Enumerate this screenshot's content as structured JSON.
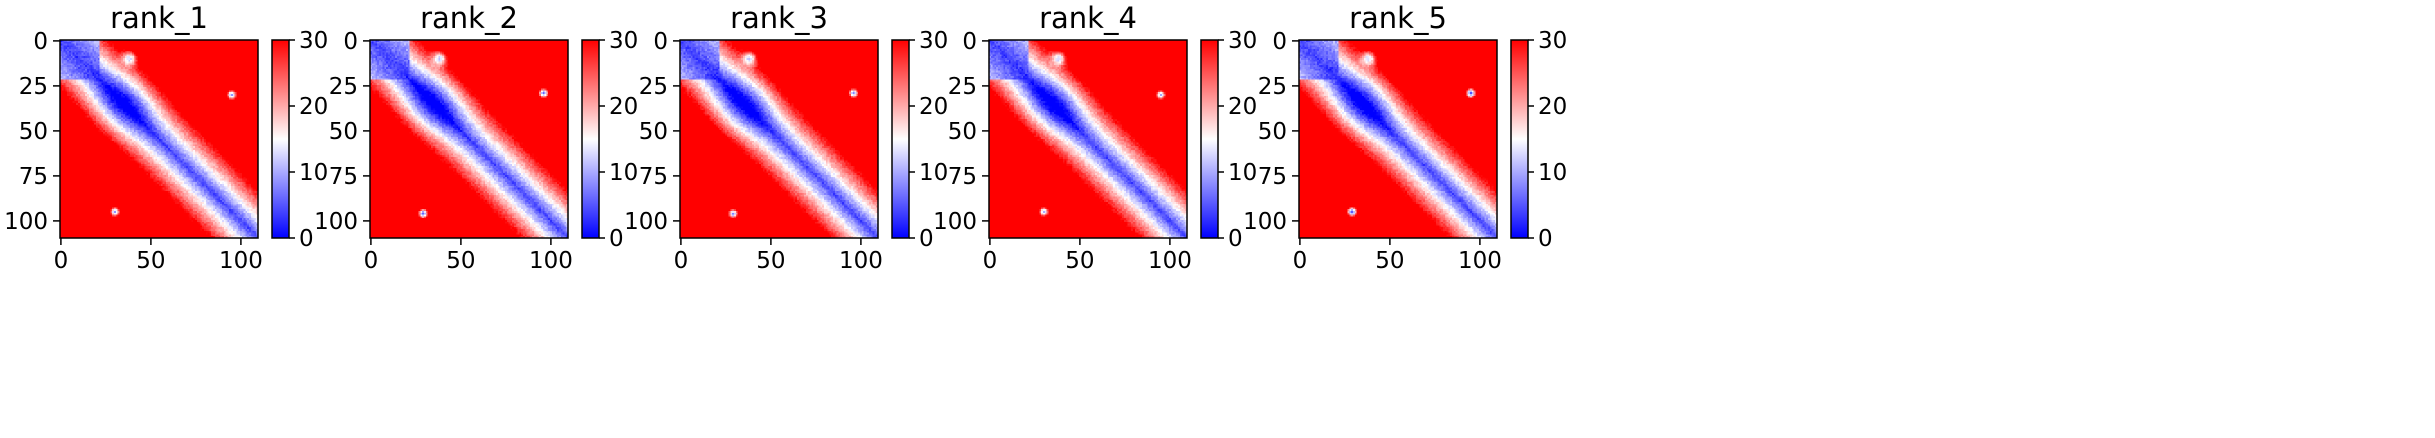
{
  "chart_data": [
    {
      "type": "heatmap",
      "title": "rank_1",
      "xlabel": "",
      "ylabel": "",
      "xlim": [
        0,
        110
      ],
      "ylim": [
        110,
        0
      ],
      "x_ticks": [
        "0",
        "50",
        "100"
      ],
      "y_ticks": [
        "0",
        "25",
        "50",
        "75",
        "100"
      ],
      "colorbar": {
        "range": [
          0,
          30
        ],
        "ticks": [
          "0",
          "10",
          "20",
          "30"
        ],
        "colormap": "bwr"
      },
      "size": 110,
      "blobs": [
        {
          "x": 95,
          "y": 30,
          "value": 10
        },
        {
          "x": 30,
          "y": 95,
          "value": 10
        },
        {
          "x": 38,
          "y": 10,
          "value": 12
        }
      ]
    },
    {
      "type": "heatmap",
      "title": "rank_2",
      "xlabel": "",
      "ylabel": "",
      "xlim": [
        0,
        110
      ],
      "ylim": [
        110,
        0
      ],
      "x_ticks": [
        "0",
        "50",
        "100"
      ],
      "y_ticks": [
        "0",
        "25",
        "50",
        "75",
        "100"
      ],
      "colorbar": {
        "range": [
          0,
          30
        ],
        "ticks": [
          "0",
          "10",
          "20",
          "30"
        ],
        "colormap": "bwr"
      },
      "size": 110,
      "blobs": [
        {
          "x": 96,
          "y": 29,
          "value": 7
        },
        {
          "x": 29,
          "y": 96,
          "value": 7
        },
        {
          "x": 38,
          "y": 10,
          "value": 12
        }
      ]
    },
    {
      "type": "heatmap",
      "title": "rank_3",
      "xlabel": "",
      "ylabel": "",
      "xlim": [
        0,
        110
      ],
      "ylim": [
        110,
        0
      ],
      "x_ticks": [
        "0",
        "50",
        "100"
      ],
      "y_ticks": [
        "0",
        "25",
        "50",
        "75",
        "100"
      ],
      "colorbar": {
        "range": [
          0,
          30
        ],
        "ticks": [
          "0",
          "10",
          "20",
          "30"
        ],
        "colormap": "bwr"
      },
      "size": 110,
      "blobs": [
        {
          "x": 96,
          "y": 29,
          "value": 9
        },
        {
          "x": 29,
          "y": 96,
          "value": 9
        },
        {
          "x": 38,
          "y": 10,
          "value": 12
        }
      ]
    },
    {
      "type": "heatmap",
      "title": "rank_4",
      "xlabel": "",
      "ylabel": "",
      "xlim": [
        0,
        110
      ],
      "ylim": [
        110,
        0
      ],
      "x_ticks": [
        "0",
        "50",
        "100"
      ],
      "y_ticks": [
        "0",
        "25",
        "50",
        "75",
        "100"
      ],
      "colorbar": {
        "range": [
          0,
          30
        ],
        "ticks": [
          "0",
          "10",
          "20",
          "30"
        ],
        "colormap": "bwr"
      },
      "size": 110,
      "blobs": [
        {
          "x": 95,
          "y": 30,
          "value": 11
        },
        {
          "x": 30,
          "y": 95,
          "value": 11
        },
        {
          "x": 38,
          "y": 10,
          "value": 12
        }
      ]
    },
    {
      "type": "heatmap",
      "title": "rank_5",
      "xlabel": "",
      "ylabel": "",
      "xlim": [
        0,
        110
      ],
      "ylim": [
        110,
        0
      ],
      "x_ticks": [
        "0",
        "50",
        "100"
      ],
      "y_ticks": [
        "0",
        "25",
        "50",
        "75",
        "100"
      ],
      "colorbar": {
        "range": [
          0,
          30
        ],
        "ticks": [
          "0",
          "10",
          "20",
          "30"
        ],
        "colormap": "bwr"
      },
      "size": 110,
      "blobs": [
        {
          "x": 95,
          "y": 29,
          "value": 6
        },
        {
          "x": 29,
          "y": 95,
          "value": 6
        },
        {
          "x": 38,
          "y": 10,
          "value": 12
        }
      ]
    }
  ]
}
